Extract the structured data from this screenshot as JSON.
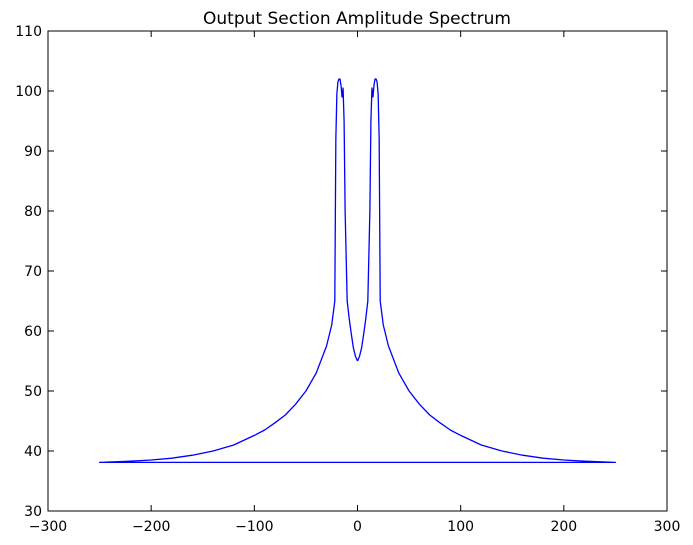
{
  "chart_data": {
    "type": "line",
    "title": "Output Section Amplitude Spectrum",
    "xlabel": "",
    "ylabel": "",
    "xlim": [
      -300,
      300
    ],
    "ylim": [
      30,
      110
    ],
    "xticks": [
      -300,
      -200,
      -100,
      0,
      100,
      200,
      300
    ],
    "yticks": [
      30,
      40,
      50,
      60,
      70,
      80,
      90,
      100,
      110
    ],
    "xtick_labels": [
      "−300",
      "−200",
      "−100",
      "0",
      "100",
      "200",
      "300"
    ],
    "ytick_labels": [
      "30",
      "40",
      "50",
      "60",
      "70",
      "80",
      "90",
      "100",
      "110"
    ],
    "grid": false,
    "legend": "none",
    "series": [
      {
        "color": "#0000ff",
        "x": [
          0,
          2,
          4,
          6,
          8,
          10,
          12,
          13,
          14,
          15,
          16,
          17,
          18,
          19,
          20,
          21,
          22,
          25,
          30,
          40,
          50,
          60,
          70,
          80,
          90,
          100,
          120,
          140,
          160,
          180,
          200,
          220,
          250,
          -250,
          -220,
          -200,
          -180,
          -160,
          -140,
          -120,
          -100,
          -90,
          -80,
          -70,
          -60,
          -50,
          -40,
          -30,
          -25,
          -22,
          -21,
          -20,
          -19,
          -18,
          -17,
          -16,
          -15,
          -14,
          -13,
          -12,
          -10,
          -8,
          -6,
          -4,
          -2,
          0
        ],
        "y": [
          55.0,
          55.8,
          57.2,
          59.5,
          62.0,
          65.0,
          80.0,
          95.0,
          100.5,
          99.0,
          101.0,
          102.0,
          102.0,
          101.5,
          99.5,
          92.0,
          65.0,
          61.0,
          57.5,
          53.0,
          50.0,
          47.8,
          46.0,
          44.7,
          43.5,
          42.6,
          41.0,
          40.0,
          39.3,
          38.8,
          38.5,
          38.3,
          38.1,
          38.1,
          38.3,
          38.5,
          38.8,
          39.3,
          40.0,
          41.0,
          42.6,
          43.5,
          44.7,
          46.0,
          47.8,
          50.0,
          53.0,
          57.5,
          61.0,
          65.0,
          92.0,
          99.5,
          101.5,
          102.0,
          102.0,
          101.0,
          99.0,
          100.5,
          95.0,
          80.0,
          65.0,
          62.0,
          59.5,
          57.2,
          55.8,
          55.0
        ]
      }
    ]
  }
}
